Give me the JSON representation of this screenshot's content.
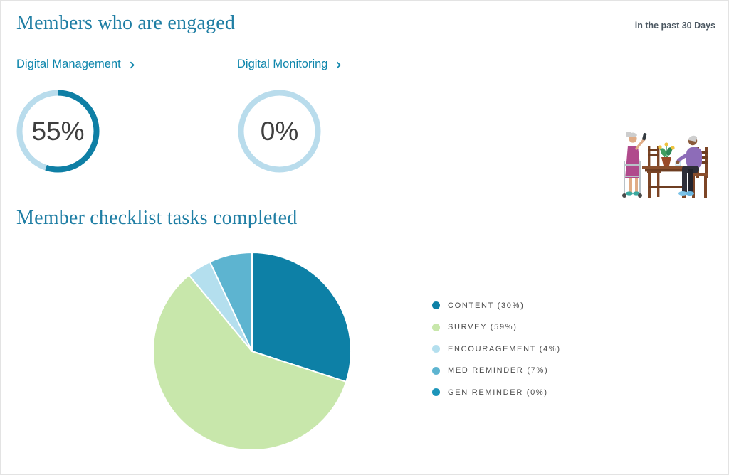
{
  "page": {
    "title": "Members who are engaged",
    "period_label": "in the past 30 Days"
  },
  "checklist_section": {
    "title": "Member checklist tasks completed"
  },
  "colors": {
    "heading_teal": "#1f7ea4",
    "link_teal": "#0e86ac",
    "gauge_track": "#b9dcec",
    "gauge_progress": "#0f7fa5"
  },
  "chart_data": [
    {
      "type": "donut",
      "label": "Digital Management",
      "value_percent": 55,
      "display_value": "55%",
      "track_color": "#b9dcec",
      "progress_color": "#0f7fa5"
    },
    {
      "type": "donut",
      "label": "Digital Monitoring",
      "value_percent": 0,
      "display_value": "0%",
      "track_color": "#b9dcec",
      "progress_color": "#0f7fa5"
    },
    {
      "type": "pie",
      "title": "Member checklist tasks completed",
      "categories": [
        "CONTENT",
        "SURVEY",
        "ENCOURAGEMENT",
        "MED REMINDER",
        "GEN REMINDER"
      ],
      "values": [
        30,
        59,
        4,
        7,
        0
      ],
      "colors": [
        "#0d80a6",
        "#c8e7ab",
        "#b4dfee",
        "#5db4d0",
        "#1c95ba"
      ],
      "legend_labels": [
        "CONTENT (30%)",
        "SURVEY (59%)",
        "ENCOURAGEMENT (4%)",
        "MED REMINDER (7%)",
        "GEN REMINDER (0%)"
      ],
      "start_angle_deg": 0,
      "direction": "clockwise",
      "legend_position": "right"
    }
  ],
  "illustration": {
    "name": "seniors-at-table"
  }
}
